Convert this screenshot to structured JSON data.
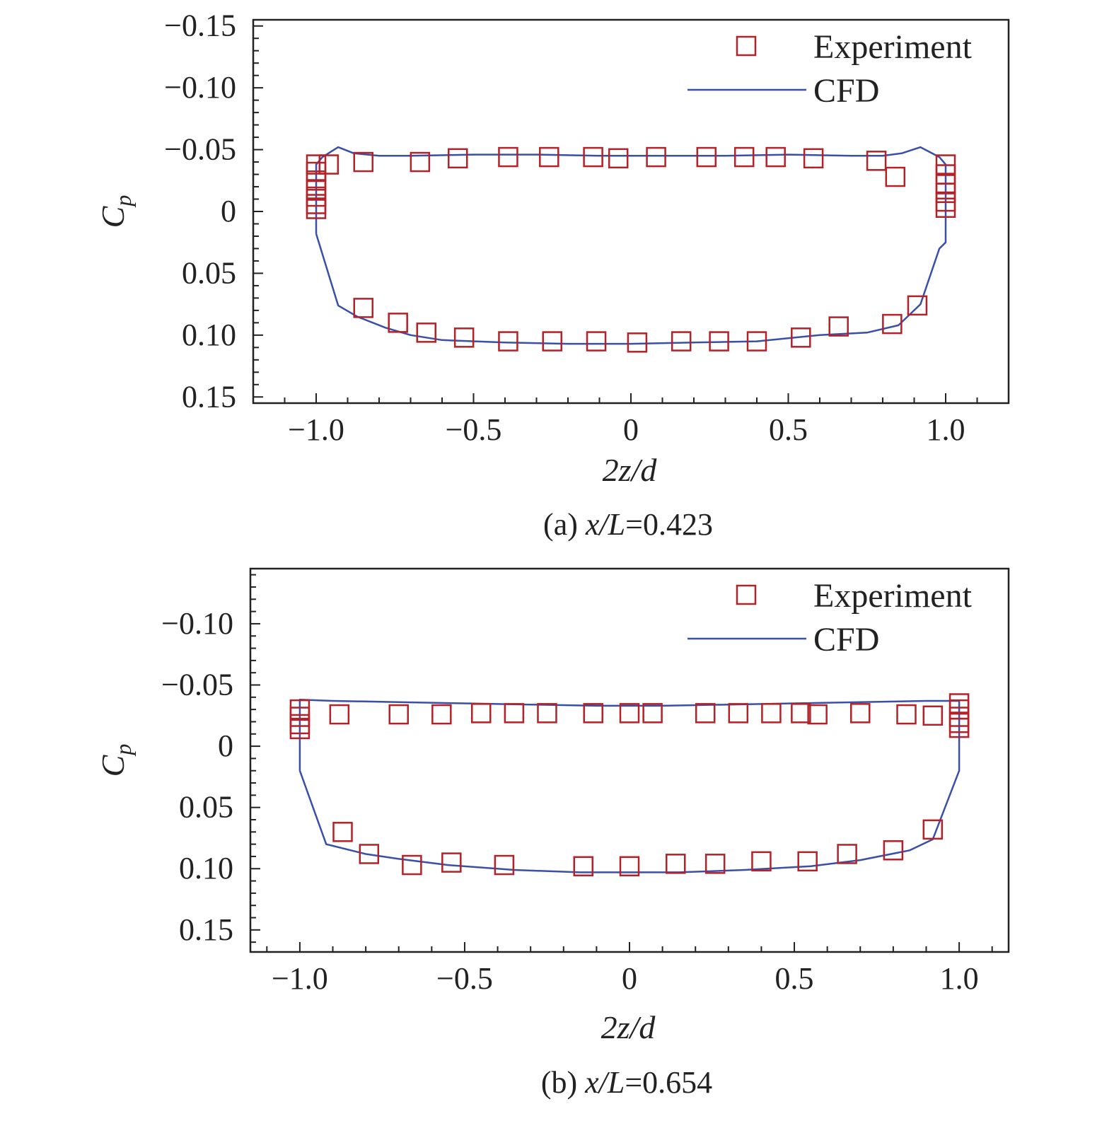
{
  "colors": {
    "experiment": "#b22228",
    "cfd": "#3a4fa8",
    "axis": "#222222"
  },
  "chart_data": [
    {
      "type": "line",
      "caption": {
        "prefix": "(a) ",
        "var": "x/L",
        "value": "=0.423"
      },
      "xlabel": "2z/d",
      "ylabel": {
        "main": "C",
        "sub": "p"
      },
      "xlim": [
        -1.2,
        1.2
      ],
      "ylim": [
        -0.155,
        0.155
      ],
      "y_inverted": true,
      "xticks": [
        -1.0,
        -0.5,
        0,
        0.5,
        1.0
      ],
      "xtick_labels": [
        "−1.0",
        "−0.5",
        "0",
        "0.5",
        "1.0"
      ],
      "yticks": [
        -0.15,
        -0.1,
        -0.05,
        0,
        0.05,
        0.1,
        0.15
      ],
      "ytick_labels": [
        "−0.15",
        "−0.10",
        "−0.05",
        "0",
        "0.05",
        "0.10",
        "0.15"
      ],
      "legend": {
        "position": "top-right",
        "experiment": "Experiment",
        "cfd": "CFD"
      },
      "series": [
        {
          "name": "Experiment",
          "kind": "marker",
          "x": [
            -1.0,
            -1.0,
            -1.0,
            -1.0,
            -1.0,
            -1.0,
            -1.0,
            -0.96,
            -0.85,
            -0.67,
            -0.55,
            -0.39,
            -0.26,
            -0.12,
            -0.04,
            0.08,
            0.24,
            0.36,
            0.46,
            0.58,
            0.78,
            0.84,
            -0.85,
            -0.74,
            -0.65,
            -0.53,
            -0.39,
            -0.25,
            -0.11,
            0.02,
            0.16,
            0.28,
            0.4,
            0.54,
            0.66,
            0.83,
            0.91,
            1.0,
            1.0,
            1.0,
            1.0,
            1.0,
            1.0
          ],
          "y": [
            -0.038,
            -0.032,
            -0.025,
            -0.018,
            -0.012,
            -0.006,
            -0.002,
            -0.038,
            -0.04,
            -0.04,
            -0.043,
            -0.044,
            -0.044,
            -0.044,
            -0.043,
            -0.044,
            -0.044,
            -0.044,
            -0.044,
            -0.043,
            -0.041,
            -0.028,
            0.078,
            0.09,
            0.098,
            0.102,
            0.105,
            0.105,
            0.105,
            0.106,
            0.105,
            0.105,
            0.105,
            0.102,
            0.093,
            0.091,
            0.076,
            -0.038,
            -0.03,
            -0.022,
            -0.015,
            -0.008,
            -0.003
          ]
        },
        {
          "name": "CFD",
          "kind": "line",
          "x": [
            -1.0,
            -1.0,
            -0.98,
            -0.93,
            -0.88,
            -0.8,
            -0.7,
            -0.5,
            -0.3,
            -0.1,
            0.1,
            0.3,
            0.5,
            0.7,
            0.8,
            0.86,
            0.92,
            0.98,
            1.0,
            1.0,
            0.98,
            0.92,
            0.85,
            0.75,
            0.6,
            0.4,
            0.2,
            0.0,
            -0.2,
            -0.4,
            -0.6,
            -0.7,
            -0.78,
            -0.87,
            -0.93,
            -1.0
          ],
          "y": [
            0.018,
            -0.038,
            -0.044,
            -0.052,
            -0.047,
            -0.045,
            -0.045,
            -0.046,
            -0.046,
            -0.045,
            -0.045,
            -0.045,
            -0.046,
            -0.045,
            -0.045,
            -0.047,
            -0.052,
            -0.044,
            -0.038,
            0.025,
            0.03,
            0.075,
            0.092,
            0.098,
            0.1,
            0.105,
            0.106,
            0.107,
            0.107,
            0.106,
            0.104,
            0.1,
            0.094,
            0.085,
            0.076,
            0.018
          ]
        }
      ]
    },
    {
      "type": "line",
      "caption": {
        "prefix": "(b) ",
        "var": "x/L",
        "value": "=0.654"
      },
      "xlabel": "2z/d",
      "ylabel": {
        "main": "C",
        "sub": "p"
      },
      "xlim": [
        -1.15,
        1.15
      ],
      "ylim": [
        -0.145,
        0.168
      ],
      "y_inverted": true,
      "xticks": [
        -1.0,
        -0.5,
        0,
        0.5,
        1.0
      ],
      "xtick_labels": [
        "−1.0",
        "−0.5",
        "0",
        "0.5",
        "1.0"
      ],
      "yticks": [
        -0.1,
        -0.05,
        0,
        0.05,
        0.1,
        0.15
      ],
      "ytick_labels": [
        "−0.10",
        "−0.05",
        "0",
        "0.05",
        "0.10",
        "0.15"
      ],
      "legend": {
        "position": "top-right",
        "experiment": "Experiment",
        "cfd": "CFD"
      },
      "series": [
        {
          "name": "Experiment",
          "kind": "marker",
          "x": [
            -1.0,
            -1.0,
            -1.0,
            -1.0,
            -0.88,
            -0.7,
            -0.57,
            -0.45,
            -0.35,
            -0.25,
            -0.11,
            0.0,
            0.07,
            0.23,
            0.33,
            0.43,
            0.52,
            0.57,
            0.7,
            0.84,
            0.92,
            -0.87,
            -0.79,
            -0.66,
            -0.54,
            -0.38,
            -0.14,
            0.0,
            0.14,
            0.26,
            0.4,
            0.54,
            0.66,
            0.8,
            0.92,
            1.0,
            1.0,
            1.0,
            1.0,
            1.0
          ],
          "y": [
            -0.03,
            -0.024,
            -0.018,
            -0.014,
            -0.026,
            -0.026,
            -0.026,
            -0.027,
            -0.027,
            -0.027,
            -0.027,
            -0.027,
            -0.027,
            -0.027,
            -0.027,
            -0.027,
            -0.027,
            -0.026,
            -0.027,
            -0.026,
            -0.025,
            0.07,
            0.088,
            0.097,
            0.095,
            0.097,
            0.098,
            0.098,
            0.096,
            0.096,
            0.094,
            0.094,
            0.088,
            0.085,
            0.068,
            -0.035,
            -0.03,
            -0.024,
            -0.019,
            -0.015
          ]
        },
        {
          "name": "CFD",
          "kind": "line",
          "x": [
            -1.0,
            -1.0,
            -0.9,
            -0.7,
            -0.5,
            -0.3,
            -0.1,
            0.1,
            0.3,
            0.5,
            0.7,
            0.9,
            1.0,
            1.0,
            1.0,
            0.92,
            0.85,
            0.7,
            0.55,
            0.35,
            0.15,
            0.0,
            -0.15,
            -0.35,
            -0.55,
            -0.7,
            -0.8,
            -0.92,
            -1.0
          ],
          "y": [
            0.02,
            -0.038,
            -0.037,
            -0.036,
            -0.035,
            -0.034,
            -0.033,
            -0.033,
            -0.034,
            -0.035,
            -0.036,
            -0.037,
            -0.037,
            -0.037,
            0.02,
            0.076,
            0.085,
            0.093,
            0.098,
            0.101,
            0.103,
            0.103,
            0.103,
            0.101,
            0.097,
            0.092,
            0.088,
            0.08,
            0.02
          ]
        }
      ]
    }
  ]
}
